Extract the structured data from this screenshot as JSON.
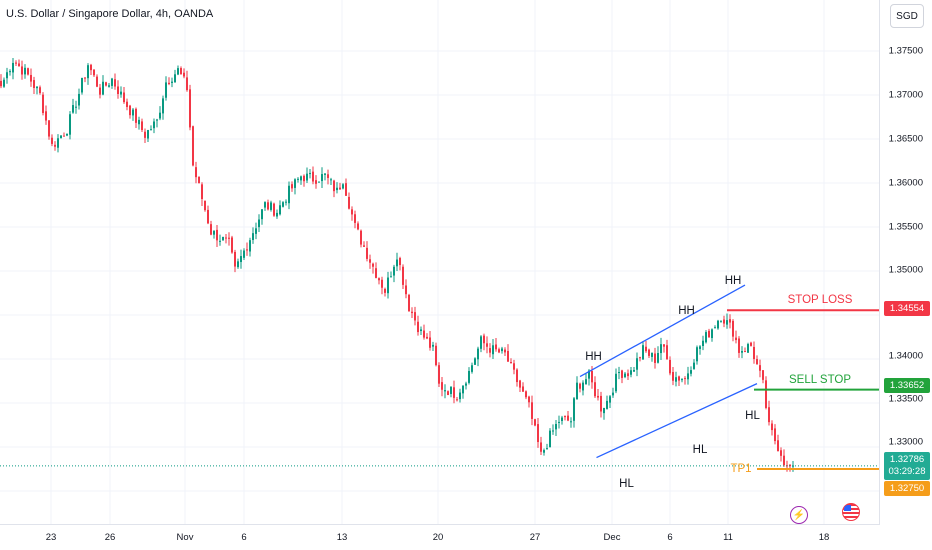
{
  "header": {
    "title": "U.S. Dollar / Singapore Dollar, 4h, OANDA",
    "currency_button": "SGD"
  },
  "chart_data": {
    "type": "candlestick",
    "y_axis": {
      "ticks": [
        "1.37500",
        "1.37000",
        "1.36500",
        "1.36000",
        "1.35500",
        "1.35000",
        "1.34000",
        "1.33500",
        "1.33000"
      ],
      "range": [
        1.324,
        1.3785
      ]
    },
    "x_axis": {
      "ticks": [
        "23",
        "26",
        "Nov",
        "6",
        "13",
        "20",
        "27",
        "Dec",
        "6",
        "11",
        "18"
      ]
    },
    "price_path": [
      [
        0,
        1.371
      ],
      [
        4,
        1.374
      ],
      [
        9,
        1.3722
      ],
      [
        13,
        1.37
      ],
      [
        17,
        1.3642
      ],
      [
        22,
        1.3662
      ],
      [
        26,
        1.3702
      ],
      [
        29,
        1.3735
      ],
      [
        33,
        1.3705
      ],
      [
        37,
        1.3718
      ],
      [
        41,
        1.3694
      ],
      [
        45,
        1.3672
      ],
      [
        48,
        1.3655
      ],
      [
        52,
        1.367
      ],
      [
        55,
        1.3715
      ],
      [
        59,
        1.3728
      ],
      [
        62,
        1.3708
      ],
      [
        64,
        1.362
      ],
      [
        70,
        1.3545
      ],
      [
        76,
        1.353
      ],
      [
        78,
        1.35
      ],
      [
        84,
        1.3545
      ],
      [
        88,
        1.3575
      ],
      [
        92,
        1.3568
      ],
      [
        96,
        1.359
      ],
      [
        100,
        1.3608
      ],
      [
        104,
        1.3605
      ],
      [
        108,
        1.3608
      ],
      [
        112,
        1.359
      ],
      [
        114,
        1.3605
      ],
      [
        118,
        1.355
      ],
      [
        124,
        1.3505
      ],
      [
        128,
        1.3478
      ],
      [
        132,
        1.352
      ],
      [
        136,
        1.346
      ],
      [
        140,
        1.343
      ],
      [
        144,
        1.341
      ],
      [
        146,
        1.337
      ],
      [
        152,
        1.336
      ],
      [
        156,
        1.3385
      ],
      [
        160,
        1.342
      ],
      [
        164,
        1.341
      ],
      [
        168,
        1.3405
      ],
      [
        172,
        1.3375
      ],
      [
        176,
        1.3345
      ],
      [
        180,
        1.329
      ],
      [
        183,
        1.3312
      ],
      [
        186,
        1.333
      ],
      [
        190,
        1.333
      ],
      [
        192,
        1.337
      ],
      [
        196,
        1.338
      ],
      [
        200,
        1.3345
      ],
      [
        202,
        1.3352
      ],
      [
        206,
        1.3385
      ],
      [
        210,
        1.3385
      ],
      [
        214,
        1.341
      ],
      [
        218,
        1.34
      ],
      [
        220,
        1.3418
      ],
      [
        224,
        1.338
      ],
      [
        228,
        1.3378
      ],
      [
        232,
        1.341
      ],
      [
        236,
        1.343
      ],
      [
        240,
        1.345
      ],
      [
        244,
        1.3432
      ],
      [
        246,
        1.341
      ],
      [
        250,
        1.3415
      ],
      [
        254,
        1.337
      ],
      [
        256,
        1.3322
      ],
      [
        260,
        1.3294
      ],
      [
        262,
        1.3275
      ],
      [
        264,
        1.3279
      ]
    ],
    "annotations": [
      {
        "text": "HH",
        "x": 197.5,
        "y": 1.3402
      },
      {
        "text": "HH",
        "x": 228.5,
        "y": 1.3455
      },
      {
        "text": "HH",
        "x": 244,
        "y": 1.3489
      },
      {
        "text": "HL",
        "x": 208.5,
        "y": 1.3258
      },
      {
        "text": "HL",
        "x": 233,
        "y": 1.3297
      },
      {
        "text": "HL",
        "x": 250.5,
        "y": 1.3335
      }
    ],
    "channel": {
      "upper": [
        [
          193,
          1.338
        ],
        [
          248,
          1.3484
        ]
      ],
      "lower": [
        [
          198.5,
          1.3288
        ],
        [
          252,
          1.3372
        ]
      ]
    },
    "levels": [
      {
        "name": "STOP LOSS",
        "value": 1.34554,
        "color": "#f23645",
        "x_from": 242
      },
      {
        "name": "SELL STOP",
        "value": 1.33652,
        "color": "#22a33b",
        "x_from": 251
      },
      {
        "name": "TP1",
        "value": 1.3275,
        "color": "#f59d1a",
        "x_from": 252
      }
    ],
    "price_tags": [
      {
        "label": "1.34554",
        "value": 1.34554,
        "color": "#f23645"
      },
      {
        "label": "1.33652",
        "value": 1.33652,
        "color": "#22a33b"
      },
      {
        "label": "1.32786",
        "sub": "03:29:28",
        "value": 1.32786,
        "color": "#22ab94"
      },
      {
        "label": "1.32750",
        "value": 1.3275,
        "color": "#f59d1a"
      }
    ],
    "current_price": 1.32786,
    "colors": {
      "up": "#089981",
      "down": "#f23645",
      "channel": "#2962ff"
    }
  },
  "events": {
    "lightning": "⚡",
    "flag": "US"
  }
}
